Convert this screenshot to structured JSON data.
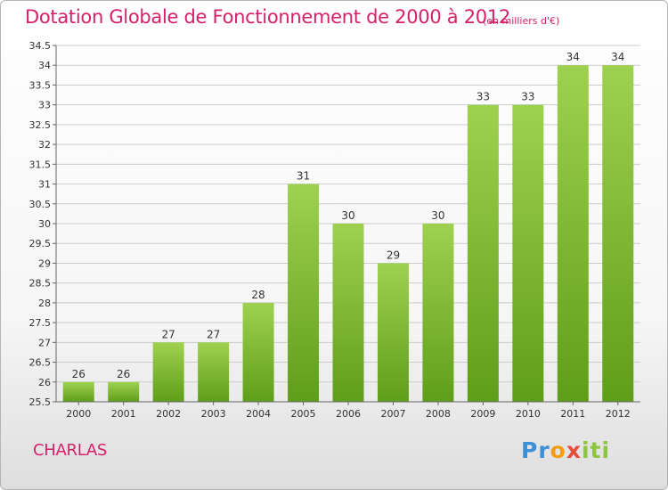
{
  "header": {
    "title": "Dotation Globale de Fonctionnement de 2000 à 2012",
    "unit_note": "(en milliers d'€)"
  },
  "footer": {
    "commune": "CHARLAS",
    "brand_parts": [
      "Pr",
      "o",
      "x",
      "iti"
    ]
  },
  "colors": {
    "title": "#d8206a",
    "bar_top": "#9fd150",
    "bar_bottom": "#5f9e1a",
    "grid": "#cccccc"
  },
  "chart_data": {
    "type": "bar",
    "title": "Dotation Globale de Fonctionnement de 2000 à 2012",
    "subtitle": "(en milliers d'€)",
    "categories": [
      "2000",
      "2001",
      "2002",
      "2003",
      "2004",
      "2005",
      "2006",
      "2007",
      "2008",
      "2009",
      "2010",
      "2011",
      "2012"
    ],
    "values": [
      26,
      26,
      27,
      27,
      28,
      31,
      30,
      29,
      30,
      33,
      33,
      34,
      34
    ],
    "ylim": [
      25.5,
      34.5
    ],
    "ytick_step": 0.5,
    "ytick_labels": [
      "25.5",
      "26",
      "26.5",
      "27",
      "27.5",
      "28",
      "28.5",
      "29",
      "29.5",
      "30",
      "30.5",
      "31",
      "31.5",
      "32",
      "32.5",
      "33",
      "33.5",
      "34",
      "34.5"
    ],
    "grid": true,
    "legend": "none"
  }
}
